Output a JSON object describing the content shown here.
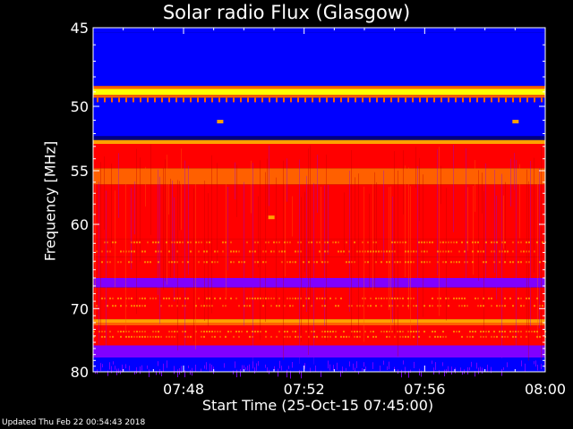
{
  "chart_data": {
    "type": "heatmap",
    "title": "Solar radio Flux (Glasgow)",
    "xlabel": "Start Time (25-Oct-15 07:45:00)",
    "ylabel": "Frequency [MHz]",
    "x_ticks": [
      "07:48",
      "07:52",
      "07:56",
      "08:00"
    ],
    "x_tick_minutes": [
      48,
      52,
      56,
      60
    ],
    "xlim_minutes": [
      45,
      60
    ],
    "y_ticks": [
      45,
      50,
      55,
      60,
      70,
      80
    ],
    "ylim": [
      45,
      80
    ],
    "y_scale": "reciprocal",
    "colormap": [
      "#000080",
      "#0000ff",
      "#8000ff",
      "#ff0000",
      "#ff6000",
      "#ffa000",
      "#ffff00"
    ],
    "bands": [
      {
        "from": 45,
        "to": 45.3,
        "level": 1
      },
      {
        "from": 45.3,
        "to": 48.6,
        "level": 1
      },
      {
        "from": 48.6,
        "to": 48.8,
        "level": 4
      },
      {
        "from": 48.8,
        "to": 49.2,
        "level": 6
      },
      {
        "from": 49.2,
        "to": 49.4,
        "level": 4
      },
      {
        "from": 49.4,
        "to": 52.2,
        "level": 1
      },
      {
        "from": 52.2,
        "to": 52.5,
        "level": 0
      },
      {
        "from": 52.5,
        "to": 52.8,
        "level": 5
      },
      {
        "from": 52.8,
        "to": 54.8,
        "level": 3
      },
      {
        "from": 54.8,
        "to": 56.2,
        "level": 4
      },
      {
        "from": 56.2,
        "to": 61.5,
        "level": 3
      },
      {
        "from": 61.5,
        "to": 63.5,
        "level": 3
      },
      {
        "from": 63.5,
        "to": 66.0,
        "level": 3
      },
      {
        "from": 66.0,
        "to": 67.2,
        "level": 2
      },
      {
        "from": 67.2,
        "to": 71.5,
        "level": 3
      },
      {
        "from": 71.5,
        "to": 72.0,
        "level": 5
      },
      {
        "from": 72.0,
        "to": 72.4,
        "level": 4
      },
      {
        "from": 72.4,
        "to": 75.5,
        "level": 3
      },
      {
        "from": 75.5,
        "to": 77.5,
        "level": 2
      },
      {
        "from": 77.5,
        "to": 80.0,
        "level": 1
      }
    ],
    "hotspots": [
      {
        "minute": 49.2,
        "freq": 51.1,
        "level": 5
      },
      {
        "minute": 50.9,
        "freq": 59.3,
        "level": 5
      },
      {
        "minute": 59.0,
        "freq": 51.1,
        "level": 5
      }
    ]
  },
  "footer": {
    "updated": "Updated Thu Feb 22 00:54:43 2018"
  }
}
